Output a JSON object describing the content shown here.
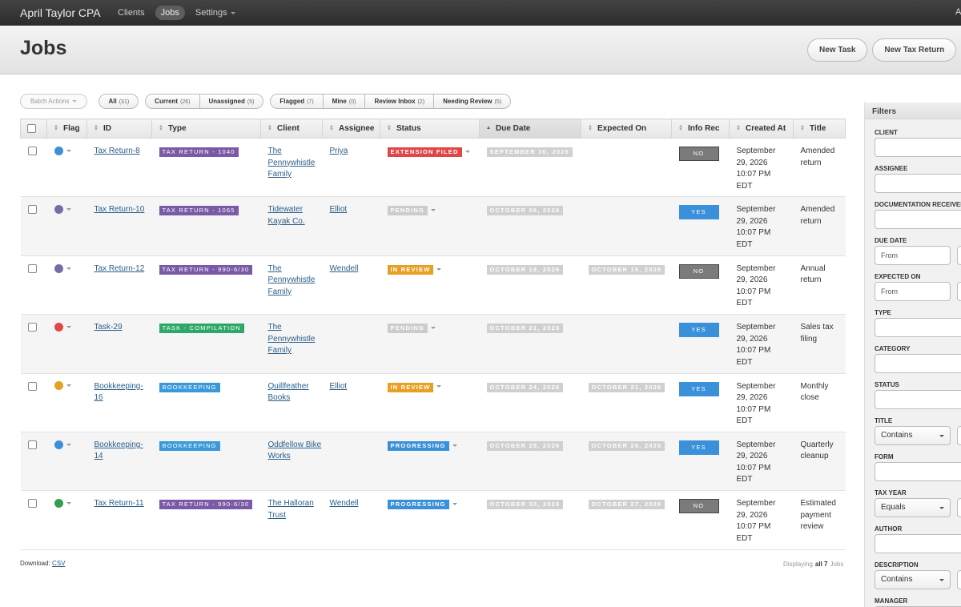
{
  "nav": {
    "brand": "April Taylor CPA",
    "links": [
      "Clients",
      "Jobs",
      "Settings"
    ],
    "active": 1,
    "user": "A"
  },
  "header": {
    "title": "Jobs",
    "buttons": [
      "New Task",
      "New Tax Return"
    ]
  },
  "toolbar": {
    "batch": "Batch Actions",
    "groups": [
      [
        {
          "label": "All",
          "count": "(31)"
        }
      ],
      [
        {
          "label": "Current",
          "count": "(26)"
        },
        {
          "label": "Unassigned",
          "count": "(5)"
        }
      ],
      [
        {
          "label": "Flagged",
          "count": "(7)"
        },
        {
          "label": "Mine",
          "count": "(0)"
        },
        {
          "label": "Review Inbox",
          "count": "(2)"
        },
        {
          "label": "Needing Review",
          "count": "(5)"
        }
      ]
    ]
  },
  "table": {
    "columns": [
      "Flag",
      "ID",
      "Type",
      "Client",
      "Assignee",
      "Status",
      "Due Date",
      "Expected On",
      "Info Rec",
      "Created At",
      "Title"
    ],
    "sorted": 6,
    "rows": [
      {
        "flag": "#3d8fd6",
        "id": "Tax Return-8",
        "type": "TAX RETURN - 1040",
        "type_color": "#7a5aa6",
        "client": "The Pennywhistle Family",
        "assignee": "Priya",
        "status": "EXTENSION FILED",
        "status_color": "#e04646",
        "due_date": "SEPTEMBER 30, 2026",
        "expected_on": null,
        "info_rec": "NO",
        "info_color": "#7b7b7b",
        "created_at": "September 29, 2026 10:07 PM EDT",
        "title": "Amended return"
      },
      {
        "flag": "#7a6aa8",
        "id": "Tax Return-10",
        "type": "TAX RETURN - 1065",
        "type_color": "#7a5aa6",
        "client": "Tidewater Kayak Co.",
        "assignee": "Elliot",
        "status": "PENDING",
        "status_color": "#cccccc",
        "due_date": "OCTOBER 06, 2026",
        "expected_on": null,
        "info_rec": "YES",
        "info_color": "#3a90d9",
        "created_at": "September 29, 2026 10:07 PM EDT",
        "title": "Amended return"
      },
      {
        "flag": "#7a6aa8",
        "id": "Tax Return-12",
        "type": "TAX RETURN - 990-6/30",
        "type_color": "#7a5aa6",
        "client": "The Pennywhistle Family",
        "assignee": "Wendell",
        "status": "IN REVIEW",
        "status_color": "#e8a024",
        "due_date": "OCTOBER 18, 2026",
        "expected_on": "OCTOBER 15, 2026",
        "info_rec": "NO",
        "info_color": "#7b7b7b",
        "created_at": "September 29, 2026 10:07 PM EDT",
        "title": "Annual return"
      },
      {
        "flag": "#e04848",
        "id": "Task-29",
        "type": "TASK - COMPILATION",
        "type_color": "#2ea86a",
        "client": "The Pennywhistle Family",
        "assignee": null,
        "status": "PENDING",
        "status_color": "#cccccc",
        "due_date": "OCTOBER 21, 2026",
        "expected_on": null,
        "info_rec": "YES",
        "info_color": "#3a90d9",
        "created_at": "September 29, 2026 10:07 PM EDT",
        "title": "Sales tax filing"
      },
      {
        "flag": "#e3a024",
        "id": "Bookkeeping-16",
        "type": "BOOKKEEPING",
        "type_color": "#3a9ad9",
        "client": "Quillfeather Books",
        "assignee": "Elliot",
        "status": "IN REVIEW",
        "status_color": "#e8a024",
        "due_date": "OCTOBER 24, 2026",
        "expected_on": "OCTOBER 21, 2026",
        "info_rec": "YES",
        "info_color": "#3a90d9",
        "created_at": "September 29, 2026 10:07 PM EDT",
        "title": "Monthly close"
      },
      {
        "flag": "#3d8fd6",
        "id": "Bookkeeping-14",
        "type": "BOOKKEEPING",
        "type_color": "#3a9ad9",
        "client": "Oddfellow Bike Works",
        "assignee": null,
        "status": "PROGRESSING",
        "status_color": "#3a90d9",
        "due_date": "OCTOBER 29, 2026",
        "expected_on": "OCTOBER 26, 2026",
        "info_rec": "YES",
        "info_color": "#3a90d9",
        "created_at": "September 29, 2026 10:07 PM EDT",
        "title": "Quarterly cleanup"
      },
      {
        "flag": "#2ea04e",
        "id": "Tax Return-11",
        "type": "TAX RETURN - 990-6/30",
        "type_color": "#7a5aa6",
        "client": "The Halloran Trust",
        "assignee": "Wendell",
        "status": "PROGRESSING",
        "status_color": "#3a90d9",
        "due_date": "OCTOBER 30, 2026",
        "expected_on": "OCTOBER 27, 2026",
        "info_rec": "NO",
        "info_color": "#7b7b7b",
        "created_at": "September 29, 2026 10:07 PM EDT",
        "title": "Estimated payment review"
      }
    ]
  },
  "footer": {
    "download_label": "Download:",
    "download_link": "CSV",
    "display_prefix": "Displaying",
    "display_count": "all 7",
    "display_suffix": "Jobs"
  },
  "filters": {
    "title": "Filters",
    "fields": [
      {
        "label": "CLIENT"
      },
      {
        "label": "ASSIGNEE"
      },
      {
        "label": "DOCUMENTATION RECEIVED"
      },
      {
        "label": "DUE DATE",
        "placeholder": "From"
      },
      {
        "label": "EXPECTED ON",
        "placeholder": "From"
      },
      {
        "label": "TYPE"
      },
      {
        "label": "CATEGORY"
      },
      {
        "label": "STATUS"
      },
      {
        "label": "TITLE",
        "select": "Contains"
      },
      {
        "label": "FORM"
      },
      {
        "label": "TAX YEAR",
        "select": "Equals"
      },
      {
        "label": "AUTHOR"
      },
      {
        "label": "DESCRIPTION",
        "select": "Contains"
      },
      {
        "label": "MANAGER"
      }
    ]
  }
}
